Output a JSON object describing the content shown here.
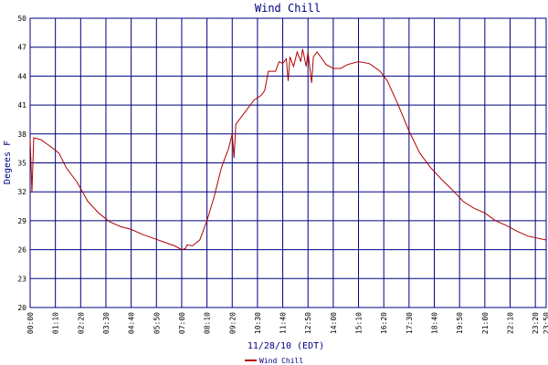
{
  "chart_data": {
    "type": "line",
    "title": "Wind Chill",
    "x_label": "11/28/10 (EDT)",
    "y_label": "Degees F",
    "x": [
      "00:00",
      "00:05",
      "00:10",
      "00:30",
      "01:00",
      "01:20",
      "01:40",
      "02:10",
      "02:40",
      "03:10",
      "03:40",
      "04:10",
      "04:40",
      "05:10",
      "05:40",
      "06:10",
      "06:40",
      "07:00",
      "07:10",
      "07:15",
      "07:30",
      "07:50",
      "08:10",
      "08:30",
      "08:50",
      "09:10",
      "09:20",
      "09:25",
      "09:30",
      "09:50",
      "10:20",
      "10:40",
      "10:50",
      "11:00",
      "11:20",
      "11:30",
      "11:40",
      "11:50",
      "11:55",
      "12:00",
      "12:10",
      "12:20",
      "12:30",
      "12:35",
      "12:45",
      "12:50",
      "13:00",
      "13:05",
      "13:15",
      "13:25",
      "13:40",
      "14:00",
      "14:20",
      "14:40",
      "15:10",
      "15:40",
      "16:10",
      "16:30",
      "17:00",
      "17:30",
      "18:00",
      "18:30",
      "19:00",
      "19:30",
      "20:00",
      "20:30",
      "21:00",
      "21:30",
      "22:00",
      "22:30",
      "23:00",
      "23:50"
    ],
    "series": [
      {
        "name": "Wind Chill",
        "color": "#b00000",
        "values": [
          37.5,
          32.0,
          37.6,
          37.4,
          36.6,
          36.0,
          34.5,
          33.0,
          31.0,
          29.8,
          28.9,
          28.4,
          28.1,
          27.6,
          27.2,
          26.8,
          26.4,
          26.0,
          26.1,
          26.5,
          26.4,
          27.0,
          29.0,
          31.5,
          34.5,
          36.5,
          38.0,
          35.5,
          39.0,
          40.0,
          41.5,
          42.0,
          42.5,
          44.5,
          44.5,
          45.5,
          45.3,
          45.8,
          43.5,
          46.0,
          45.0,
          46.5,
          45.5,
          46.8,
          45.0,
          46.5,
          43.3,
          46.0,
          46.5,
          46.0,
          45.2,
          44.8,
          44.8,
          45.2,
          45.5,
          45.3,
          44.5,
          43.5,
          41.0,
          38.3,
          36.0,
          34.5,
          33.3,
          32.2,
          31.0,
          30.3,
          29.8,
          29.0,
          28.5,
          27.9,
          27.4,
          27.0
        ]
      }
    ],
    "xlim": [
      "00:00",
      "23:50"
    ],
    "xticks": [
      "00:00",
      "01:10",
      "02:20",
      "03:30",
      "04:40",
      "05:50",
      "07:00",
      "08:10",
      "09:20",
      "10:30",
      "11:40",
      "12:50",
      "14:00",
      "15:10",
      "16:20",
      "17:30",
      "18:40",
      "19:50",
      "21:00",
      "22:10",
      "23:20",
      "23:50"
    ],
    "ylim": [
      20,
      50
    ],
    "yticks": [
      20,
      23,
      26,
      29,
      32,
      35,
      38,
      41,
      44,
      47,
      50
    ],
    "grid": true,
    "grid_color": "#000080"
  }
}
